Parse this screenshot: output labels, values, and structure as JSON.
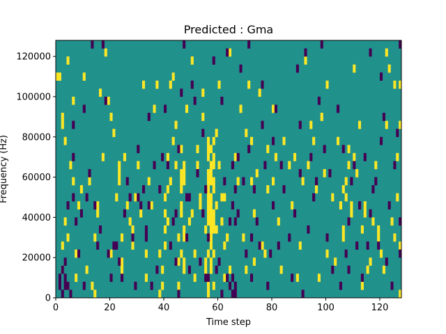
{
  "chart_data": {
    "type": "heatmap",
    "title": "Predicted : Gma",
    "xlabel": "Time step",
    "ylabel": "Frequency (Hz)",
    "xlim": [
      0,
      128
    ],
    "ylim": [
      0,
      128000
    ],
    "x_ticks": [
      0,
      20,
      40,
      60,
      80,
      100,
      120
    ],
    "y_ticks": [
      0,
      20000,
      40000,
      60000,
      80000,
      100000,
      120000
    ],
    "x_tick_labels": [
      "0",
      "20",
      "40",
      "60",
      "80",
      "100",
      "120"
    ],
    "y_tick_labels": [
      "0",
      "20000",
      "40000",
      "60000",
      "80000",
      "100000",
      "120000"
    ],
    "grid": false,
    "legend": "none",
    "colors": {
      "background_value": "#21918c",
      "high_value": "#fde725",
      "low_value": "#440154",
      "axes": "#000000"
    },
    "bin_width_hz": 4000,
    "cells_high": [
      [
        0,
        108000
      ],
      [
        1,
        108000
      ],
      [
        2,
        24000
      ],
      [
        2,
        12000
      ],
      [
        4,
        116000
      ],
      [
        2,
        88000
      ],
      [
        2,
        84000
      ],
      [
        3,
        76000
      ],
      [
        3,
        36000
      ],
      [
        4,
        28000
      ],
      [
        4,
        4000
      ],
      [
        5,
        64000
      ],
      [
        6,
        96000
      ],
      [
        6,
        56000
      ],
      [
        7,
        20000
      ],
      [
        7,
        8000
      ],
      [
        8,
        44000
      ],
      [
        9,
        52000
      ],
      [
        10,
        108000
      ],
      [
        11,
        12000
      ],
      [
        12,
        56000
      ],
      [
        13,
        4000
      ],
      [
        14,
        28000
      ],
      [
        14,
        0
      ],
      [
        15,
        40000
      ],
      [
        15,
        44000
      ],
      [
        16,
        100000
      ],
      [
        17,
        68000
      ],
      [
        18,
        120000
      ],
      [
        19,
        96000
      ],
      [
        20,
        88000
      ],
      [
        20,
        20000
      ],
      [
        21,
        80000
      ],
      [
        22,
        48000
      ],
      [
        23,
        56000
      ],
      [
        23,
        60000
      ],
      [
        23,
        64000
      ],
      [
        24,
        28000
      ],
      [
        24,
        16000
      ],
      [
        24,
        12000
      ],
      [
        25,
        68000
      ],
      [
        26,
        44000
      ],
      [
        27,
        36000
      ],
      [
        28,
        24000
      ],
      [
        28,
        32000
      ],
      [
        29,
        48000
      ],
      [
        30,
        64000
      ],
      [
        31,
        40000
      ],
      [
        32,
        104000
      ],
      [
        33,
        20000
      ],
      [
        33,
        8000
      ],
      [
        34,
        56000
      ],
      [
        35,
        44000
      ],
      [
        36,
        92000
      ],
      [
        37,
        104000
      ],
      [
        38,
        20000
      ],
      [
        38,
        0
      ],
      [
        39,
        12000
      ],
      [
        39,
        4000
      ],
      [
        40,
        48000
      ],
      [
        40,
        40000
      ],
      [
        40,
        32000
      ],
      [
        40,
        24000
      ],
      [
        41,
        36000
      ],
      [
        41,
        68000
      ],
      [
        41,
        52000
      ],
      [
        42,
        56000
      ],
      [
        42,
        104000
      ],
      [
        43,
        108000
      ],
      [
        43,
        76000
      ],
      [
        44,
        64000
      ],
      [
        44,
        84000
      ],
      [
        45,
        4000
      ],
      [
        45,
        16000
      ],
      [
        45,
        28000
      ],
      [
        46,
        72000
      ],
      [
        46,
        60000
      ],
      [
        46,
        56000
      ],
      [
        46,
        52000
      ],
      [
        46,
        40000
      ],
      [
        46,
        44000
      ],
      [
        46,
        20000
      ],
      [
        47,
        56000
      ],
      [
        47,
        60000
      ],
      [
        47,
        64000
      ],
      [
        47,
        28000
      ],
      [
        47,
        32000
      ],
      [
        47,
        12000
      ],
      [
        47,
        16000
      ],
      [
        48,
        92000
      ],
      [
        49,
        36000
      ],
      [
        50,
        40000
      ],
      [
        50,
        116000
      ],
      [
        51,
        8000
      ],
      [
        51,
        20000
      ],
      [
        52,
        72000
      ],
      [
        52,
        64000
      ],
      [
        53,
        44000
      ],
      [
        53,
        48000
      ],
      [
        54,
        88000
      ],
      [
        54,
        100000
      ],
      [
        55,
        32000
      ],
      [
        55,
        16000
      ],
      [
        55,
        12000
      ],
      [
        56,
        76000
      ],
      [
        56,
        72000
      ],
      [
        56,
        68000
      ],
      [
        56,
        60000
      ],
      [
        56,
        56000
      ],
      [
        56,
        52000
      ],
      [
        56,
        48000
      ],
      [
        56,
        44000
      ],
      [
        56,
        40000
      ],
      [
        56,
        36000
      ],
      [
        56,
        20000
      ],
      [
        56,
        8000
      ],
      [
        56,
        4000
      ],
      [
        56,
        0
      ],
      [
        57,
        72000
      ],
      [
        57,
        64000
      ],
      [
        57,
        60000
      ],
      [
        57,
        56000
      ],
      [
        57,
        48000
      ],
      [
        57,
        44000
      ],
      [
        57,
        40000
      ],
      [
        57,
        36000
      ],
      [
        57,
        32000
      ],
      [
        57,
        28000
      ],
      [
        57,
        24000
      ],
      [
        57,
        16000
      ],
      [
        57,
        12000
      ],
      [
        58,
        76000
      ],
      [
        58,
        68000
      ],
      [
        58,
        64000
      ],
      [
        58,
        56000
      ],
      [
        58,
        52000
      ],
      [
        58,
        40000
      ],
      [
        58,
        36000
      ],
      [
        58,
        32000
      ],
      [
        58,
        20000
      ],
      [
        58,
        4000
      ],
      [
        59,
        80000
      ],
      [
        59,
        44000
      ],
      [
        59,
        32000
      ],
      [
        60,
        104000
      ],
      [
        60,
        64000
      ],
      [
        61,
        36000
      ],
      [
        61,
        48000
      ],
      [
        62,
        48000
      ],
      [
        62,
        24000
      ],
      [
        62,
        8000
      ],
      [
        63,
        28000
      ],
      [
        64,
        12000
      ],
      [
        64,
        120000
      ],
      [
        66,
        68000
      ],
      [
        67,
        56000
      ],
      [
        68,
        92000
      ],
      [
        69,
        28000
      ],
      [
        70,
        80000
      ],
      [
        70,
        12000
      ],
      [
        71,
        104000
      ],
      [
        72,
        76000
      ],
      [
        72,
        56000
      ],
      [
        73,
        40000
      ],
      [
        73,
        16000
      ],
      [
        74,
        60000
      ],
      [
        75,
        100000
      ],
      [
        76,
        24000
      ],
      [
        77,
        20000
      ],
      [
        78,
        72000
      ],
      [
        78,
        52000
      ],
      [
        80,
        92000
      ],
      [
        80,
        56000
      ],
      [
        81,
        68000
      ],
      [
        82,
        36000
      ],
      [
        83,
        12000
      ],
      [
        84,
        76000
      ],
      [
        86,
        64000
      ],
      [
        87,
        44000
      ],
      [
        88,
        68000
      ],
      [
        89,
        8000
      ],
      [
        90,
        24000
      ],
      [
        91,
        56000
      ],
      [
        92,
        116000
      ],
      [
        93,
        64000
      ],
      [
        94,
        84000
      ],
      [
        95,
        76000
      ],
      [
        96,
        52000
      ],
      [
        97,
        8000
      ],
      [
        98,
        88000
      ],
      [
        99,
        60000
      ],
      [
        100,
        20000
      ],
      [
        102,
        48000
      ],
      [
        103,
        16000
      ],
      [
        104,
        76000
      ],
      [
        105,
        44000
      ],
      [
        106,
        32000
      ],
      [
        106,
        28000
      ],
      [
        106,
        52000
      ],
      [
        107,
        48000
      ],
      [
        107,
        56000
      ],
      [
        108,
        64000
      ],
      [
        108,
        72000
      ],
      [
        109,
        44000
      ],
      [
        109,
        40000
      ],
      [
        110,
        68000
      ],
      [
        111,
        60000
      ],
      [
        112,
        84000
      ],
      [
        113,
        4000
      ],
      [
        114,
        44000
      ],
      [
        114,
        40000
      ],
      [
        115,
        12000
      ],
      [
        116,
        16000
      ],
      [
        117,
        36000
      ],
      [
        118,
        64000
      ],
      [
        119,
        32000
      ],
      [
        119,
        28000
      ],
      [
        120,
        20000
      ],
      [
        121,
        12000
      ],
      [
        122,
        84000
      ],
      [
        122,
        120000
      ],
      [
        123,
        112000
      ],
      [
        124,
        36000
      ],
      [
        125,
        104000
      ],
      [
        125,
        28000
      ],
      [
        126,
        68000
      ],
      [
        127,
        24000
      ],
      [
        127,
        104000
      ],
      [
        127,
        84000
      ],
      [
        127,
        0
      ],
      [
        126,
        48000
      ],
      [
        100,
        104000
      ],
      [
        110,
        112000
      ],
      [
        113,
        32000
      ]
    ],
    "cells_low": [
      [
        1,
        8000
      ],
      [
        1,
        4000
      ],
      [
        2,
        12000
      ],
      [
        2,
        0
      ],
      [
        3,
        4000
      ],
      [
        3,
        8000
      ],
      [
        3,
        16000
      ],
      [
        4,
        44000
      ],
      [
        4,
        4000
      ],
      [
        5,
        0
      ],
      [
        6,
        84000
      ],
      [
        6,
        68000
      ],
      [
        6,
        48000
      ],
      [
        7,
        36000
      ],
      [
        8,
        20000
      ],
      [
        9,
        40000
      ],
      [
        10,
        92000
      ],
      [
        10,
        4000
      ],
      [
        11,
        48000
      ],
      [
        12,
        60000
      ],
      [
        13,
        124000
      ],
      [
        14,
        44000
      ],
      [
        15,
        24000
      ],
      [
        16,
        32000
      ],
      [
        17,
        124000
      ],
      [
        18,
        96000
      ],
      [
        19,
        20000
      ],
      [
        20,
        8000
      ],
      [
        21,
        24000
      ],
      [
        22,
        24000
      ],
      [
        23,
        16000
      ],
      [
        24,
        8000
      ],
      [
        25,
        40000
      ],
      [
        26,
        56000
      ],
      [
        27,
        48000
      ],
      [
        28,
        28000
      ],
      [
        29,
        4000
      ],
      [
        30,
        72000
      ],
      [
        30,
        48000
      ],
      [
        31,
        44000
      ],
      [
        32,
        52000
      ],
      [
        33,
        32000
      ],
      [
        33,
        28000
      ],
      [
        34,
        88000
      ],
      [
        34,
        44000
      ],
      [
        35,
        4000
      ],
      [
        36,
        64000
      ],
      [
        37,
        12000
      ],
      [
        38,
        52000
      ],
      [
        39,
        68000
      ],
      [
        40,
        92000
      ],
      [
        41,
        64000
      ],
      [
        42,
        24000
      ],
      [
        43,
        36000
      ],
      [
        44,
        40000
      ],
      [
        44,
        16000
      ],
      [
        45,
        72000
      ],
      [
        45,
        0
      ],
      [
        46,
        100000
      ],
      [
        47,
        124000
      ],
      [
        48,
        28000
      ],
      [
        48,
        48000
      ],
      [
        49,
        48000
      ],
      [
        49,
        12000
      ],
      [
        50,
        104000
      ],
      [
        51,
        96000
      ],
      [
        52,
        60000
      ],
      [
        53,
        16000
      ],
      [
        54,
        80000
      ],
      [
        54,
        40000
      ],
      [
        55,
        8000
      ],
      [
        55,
        52000
      ],
      [
        56,
        8000
      ],
      [
        56,
        28000
      ],
      [
        58,
        116000
      ],
      [
        59,
        12000
      ],
      [
        60,
        16000
      ],
      [
        61,
        0
      ],
      [
        62,
        56000
      ],
      [
        63,
        8000
      ],
      [
        63,
        120000
      ],
      [
        64,
        36000
      ],
      [
        64,
        4000
      ],
      [
        65,
        64000
      ],
      [
        65,
        8000
      ],
      [
        65,
        0
      ],
      [
        65,
        44000
      ],
      [
        66,
        52000
      ],
      [
        66,
        36000
      ],
      [
        66,
        4000
      ],
      [
        66,
        0
      ],
      [
        67,
        68000
      ],
      [
        67,
        40000
      ],
      [
        68,
        112000
      ],
      [
        69,
        56000
      ],
      [
        70,
        20000
      ],
      [
        71,
        124000
      ],
      [
        71,
        72000
      ],
      [
        72,
        28000
      ],
      [
        72,
        8000
      ],
      [
        73,
        52000
      ],
      [
        74,
        36000
      ],
      [
        75,
        24000
      ],
      [
        76,
        84000
      ],
      [
        77,
        64000
      ],
      [
        78,
        4000
      ],
      [
        79,
        20000
      ],
      [
        80,
        44000
      ],
      [
        80,
        76000
      ],
      [
        81,
        92000
      ],
      [
        82,
        24000
      ],
      [
        83,
        64000
      ],
      [
        84,
        52000
      ],
      [
        86,
        28000
      ],
      [
        87,
        8000
      ],
      [
        88,
        40000
      ],
      [
        89,
        112000
      ],
      [
        90,
        60000
      ],
      [
        91,
        0
      ],
      [
        92,
        120000
      ],
      [
        93,
        32000
      ],
      [
        94,
        68000
      ],
      [
        95,
        48000
      ],
      [
        96,
        56000
      ],
      [
        98,
        124000
      ],
      [
        99,
        72000
      ],
      [
        100,
        28000
      ],
      [
        101,
        60000
      ],
      [
        102,
        12000
      ],
      [
        104,
        92000
      ],
      [
        105,
        4000
      ],
      [
        106,
        72000
      ],
      [
        107,
        20000
      ],
      [
        108,
        36000
      ],
      [
        109,
        56000
      ],
      [
        110,
        64000
      ],
      [
        111,
        24000
      ],
      [
        112,
        44000
      ],
      [
        113,
        8000
      ],
      [
        114,
        68000
      ],
      [
        115,
        24000
      ],
      [
        116,
        40000
      ],
      [
        117,
        52000
      ],
      [
        118,
        56000
      ],
      [
        119,
        24000
      ],
      [
        120,
        108000
      ],
      [
        120,
        76000
      ],
      [
        121,
        88000
      ],
      [
        122,
        16000
      ],
      [
        123,
        44000
      ],
      [
        124,
        4000
      ],
      [
        125,
        64000
      ],
      [
        126,
        80000
      ],
      [
        127,
        124000
      ],
      [
        127,
        20000
      ],
      [
        127,
        36000
      ],
      [
        116,
        120000
      ],
      [
        108,
        12000
      ],
      [
        97,
        96000
      ],
      [
        90,
        84000
      ],
      [
        76,
        104000
      ],
      [
        61,
        96000
      ]
    ]
  }
}
